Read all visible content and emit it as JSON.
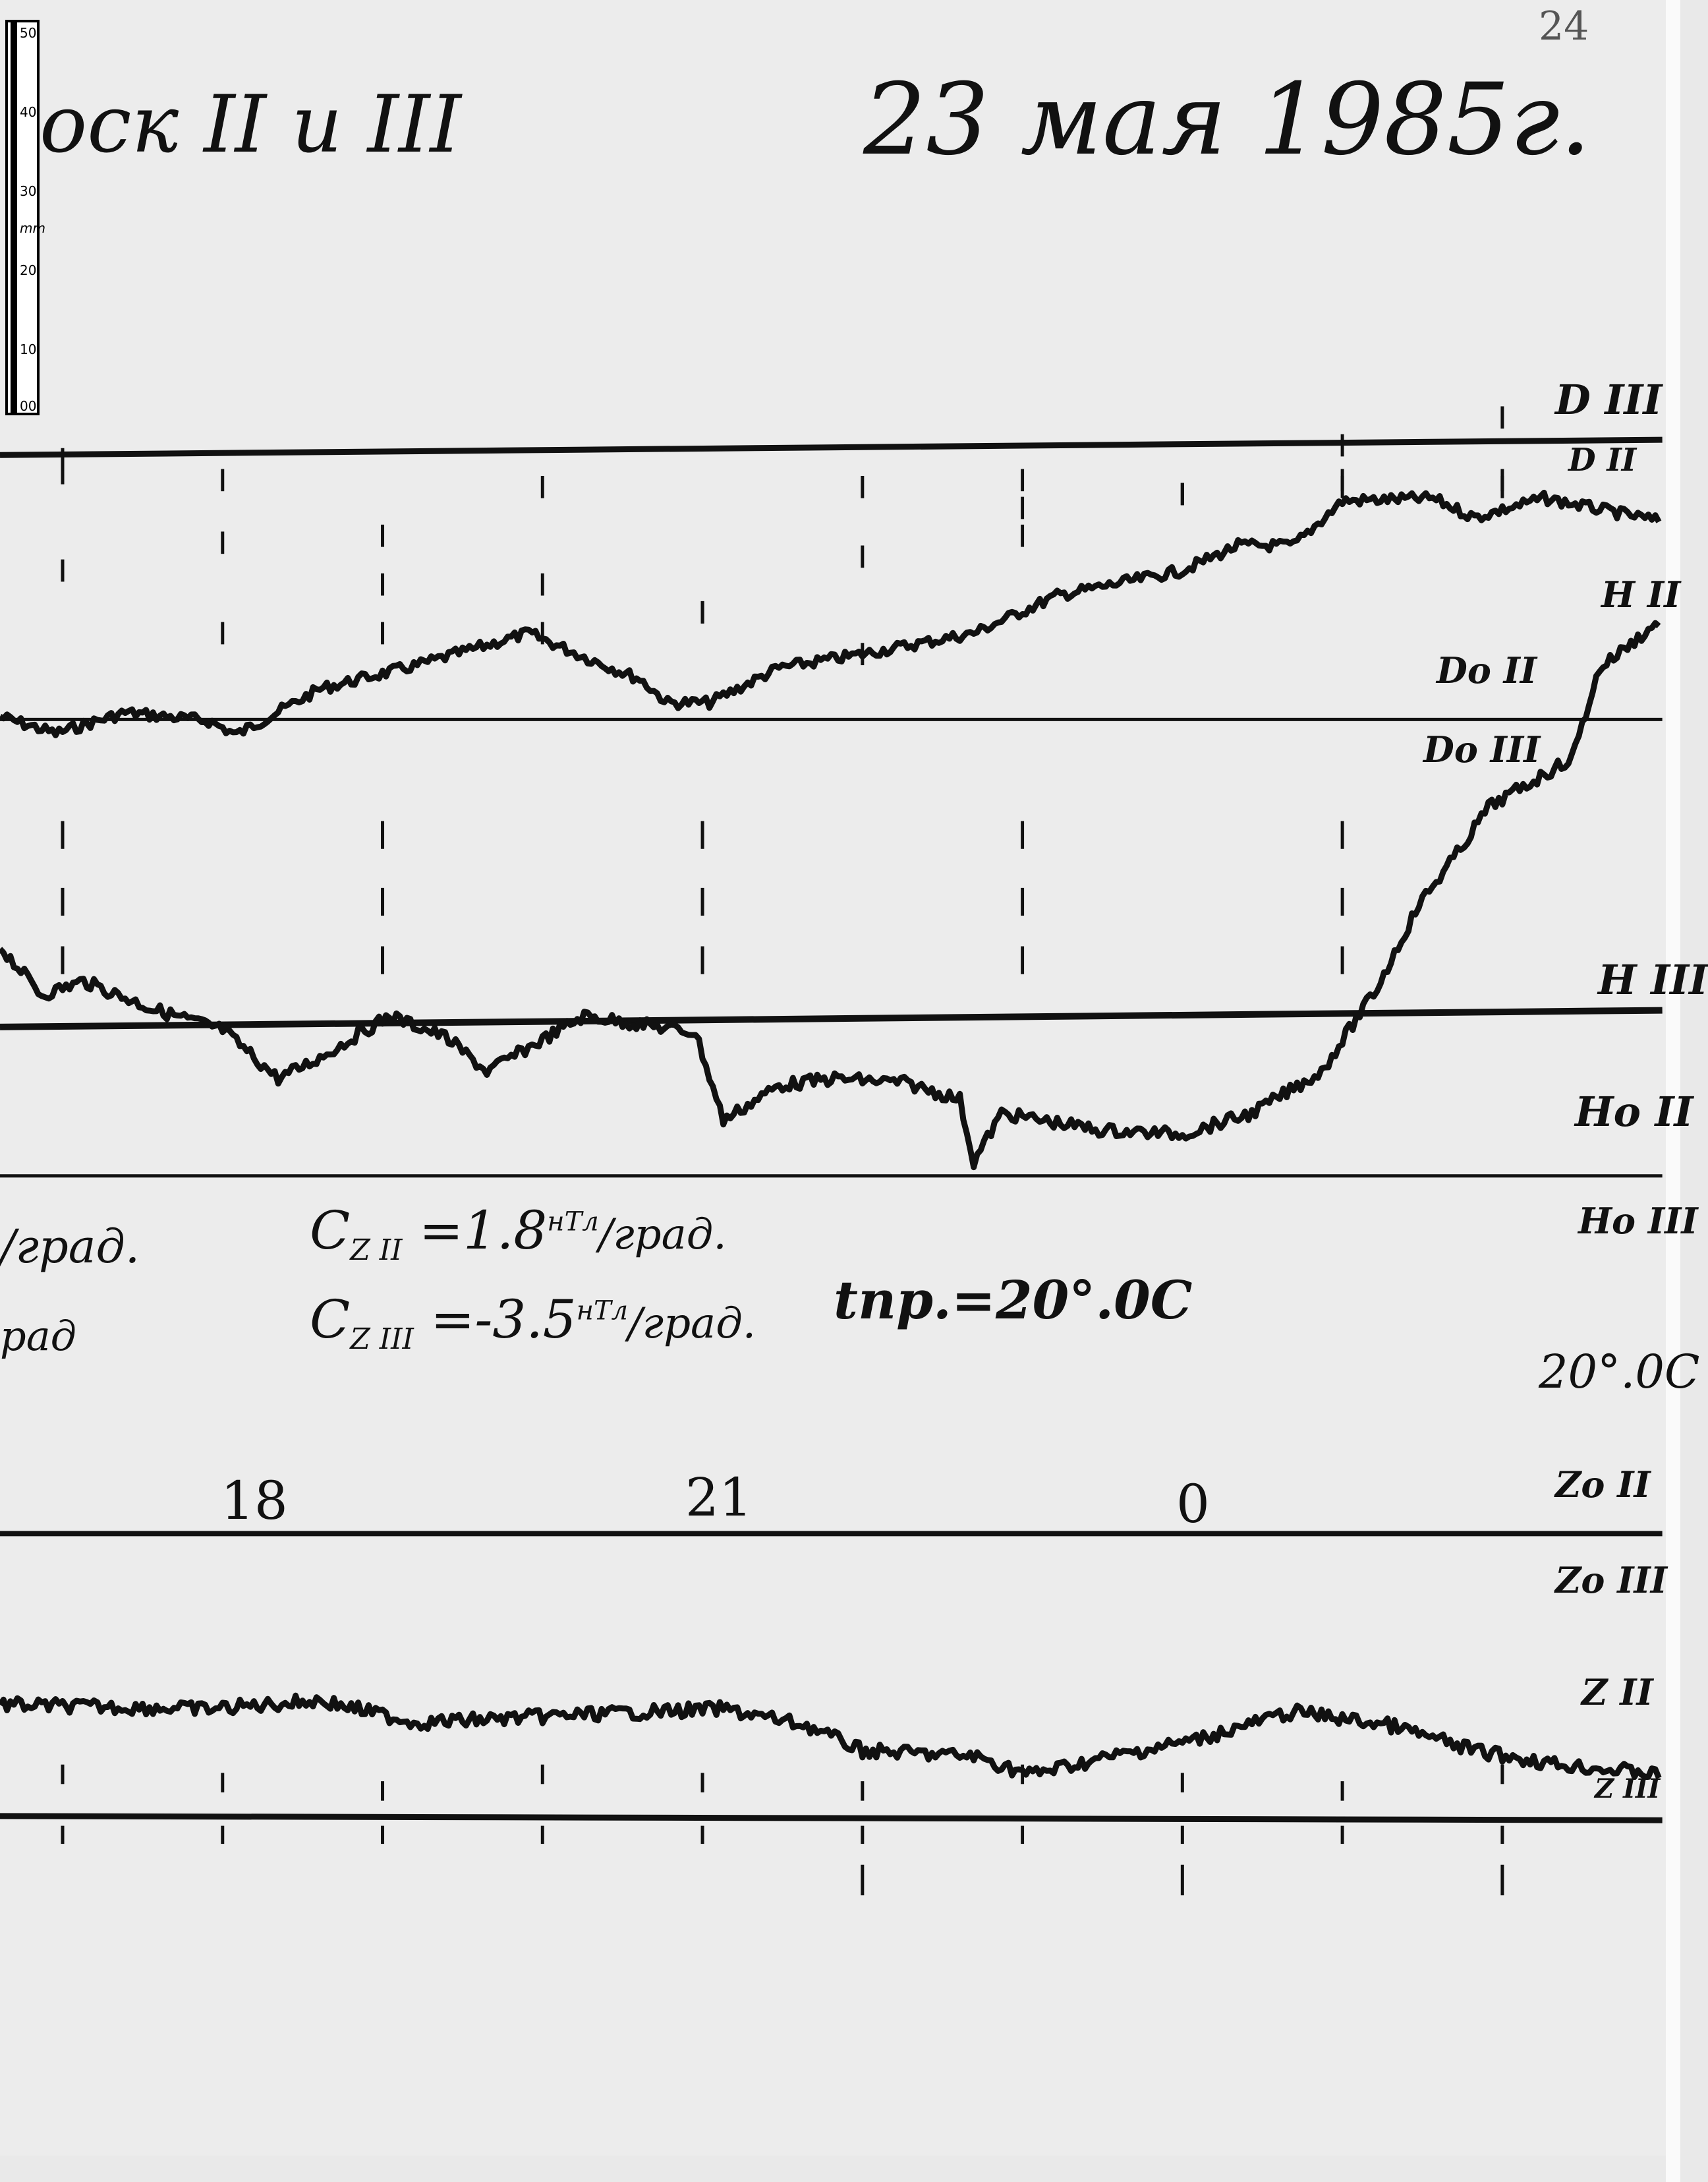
{
  "page_number": "24",
  "title": "оск II и III",
  "date": "23 мая 1985г.",
  "ruler": {
    "unit": "mm",
    "ticks": [
      "50",
      "40",
      "30",
      "20",
      "10",
      "00"
    ]
  },
  "trace_labels": {
    "d3": "D III",
    "d2": "D II",
    "h2": "H II",
    "do2": "Do II",
    "do3": "Do III",
    "h3": "H III",
    "ho2": "Ho II",
    "ho3": "Ho III",
    "temp": "20°.0C",
    "zo2": "Zo II",
    "zo3": "Zo III",
    "z2": "Z II",
    "z3": "Z III"
  },
  "scale_notes": {
    "left1": "/град.",
    "left2": "рад",
    "cz2_sym": "C",
    "cz2_sub": "Z II",
    "cz2_val": "=1.8",
    "cz2_unit_sup": "нТл",
    "cz2_unit": "/град.",
    "cz3_sym": "C",
    "cz3_sub": "Z III",
    "cz3_val": "=-3.5",
    "cz3_unit_sup": "нТл",
    "cz3_unit": "/град.",
    "temp_note": "tпр.=20°.0C"
  },
  "hours": [
    "18",
    "21",
    "0"
  ],
  "colors": {
    "ink": "#111111",
    "paper": "#ececec"
  }
}
